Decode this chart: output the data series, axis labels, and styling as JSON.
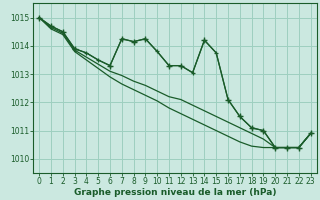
{
  "background_color": "#cbe8e0",
  "grid_color": "#9ecfbf",
  "line_color": "#1a5c2a",
  "xlabel": "Graphe pression niveau de la mer (hPa)",
  "xlim": [
    -0.5,
    23.5
  ],
  "ylim": [
    1009.5,
    1015.5
  ],
  "yticks": [
    1010,
    1011,
    1012,
    1013,
    1014,
    1015
  ],
  "xticks": [
    0,
    1,
    2,
    3,
    4,
    5,
    6,
    7,
    8,
    9,
    10,
    11,
    12,
    13,
    14,
    15,
    16,
    17,
    18,
    19,
    20,
    21,
    22,
    23
  ],
  "series": [
    {
      "x": [
        0,
        1,
        2,
        3,
        4,
        5,
        6,
        7,
        8,
        9,
        10,
        11,
        12,
        13,
        14,
        15,
        16,
        17,
        18,
        19,
        20,
        21,
        22,
        23
      ],
      "y": [
        1015.0,
        1014.7,
        1014.5,
        1013.9,
        1013.75,
        1013.5,
        1013.3,
        1014.25,
        1014.15,
        1014.25,
        1013.8,
        1013.3,
        1013.3,
        1013.05,
        1014.2,
        1013.75,
        1012.1,
        1011.5,
        1011.1,
        1011.0,
        1010.4,
        1010.4,
        1010.4,
        1010.9
      ],
      "marker": true,
      "lw": 0.9
    },
    {
      "x": [
        0,
        1,
        2,
        3,
        4,
        5,
        6,
        7,
        8,
        9,
        10,
        11,
        12,
        13,
        14,
        15,
        16,
        17,
        18,
        19,
        20,
        21,
        22,
        23
      ],
      "y": [
        1015.0,
        1014.65,
        1014.45,
        1013.85,
        1013.6,
        1013.35,
        1013.1,
        1012.95,
        1012.75,
        1012.6,
        1012.4,
        1012.2,
        1012.1,
        1011.9,
        1011.7,
        1011.5,
        1011.3,
        1011.1,
        1010.9,
        1010.7,
        1010.4,
        1010.4,
        1010.4,
        1010.9
      ],
      "marker": false,
      "lw": 0.9
    },
    {
      "x": [
        0,
        1,
        2,
        3,
        4,
        5,
        6,
        7,
        8,
        9,
        10,
        11,
        12,
        13,
        14,
        15,
        16,
        17,
        18,
        19,
        20,
        21,
        22,
        23
      ],
      "y": [
        1015.0,
        1014.6,
        1014.4,
        1013.8,
        1013.5,
        1013.2,
        1012.9,
        1012.65,
        1012.45,
        1012.25,
        1012.05,
        1011.8,
        1011.6,
        1011.4,
        1011.2,
        1011.0,
        1010.8,
        1010.6,
        1010.45,
        1010.4,
        1010.4,
        1010.4,
        1010.4,
        1010.9
      ],
      "marker": false,
      "lw": 0.9
    }
  ],
  "marker_x": [
    0,
    1,
    2,
    3,
    6,
    7,
    8,
    9,
    11,
    12,
    14,
    16,
    17,
    18,
    19,
    20,
    21,
    22,
    23
  ],
  "marker_y": [
    1015.0,
    1014.7,
    1014.5,
    1013.9,
    1013.3,
    1014.25,
    1014.15,
    1014.25,
    1013.3,
    1013.3,
    1014.2,
    1012.1,
    1011.5,
    1011.1,
    1011.0,
    1010.4,
    1010.4,
    1010.4,
    1010.9
  ],
  "xlabel_fontsize": 6.5,
  "tick_fontsize": 5.5
}
